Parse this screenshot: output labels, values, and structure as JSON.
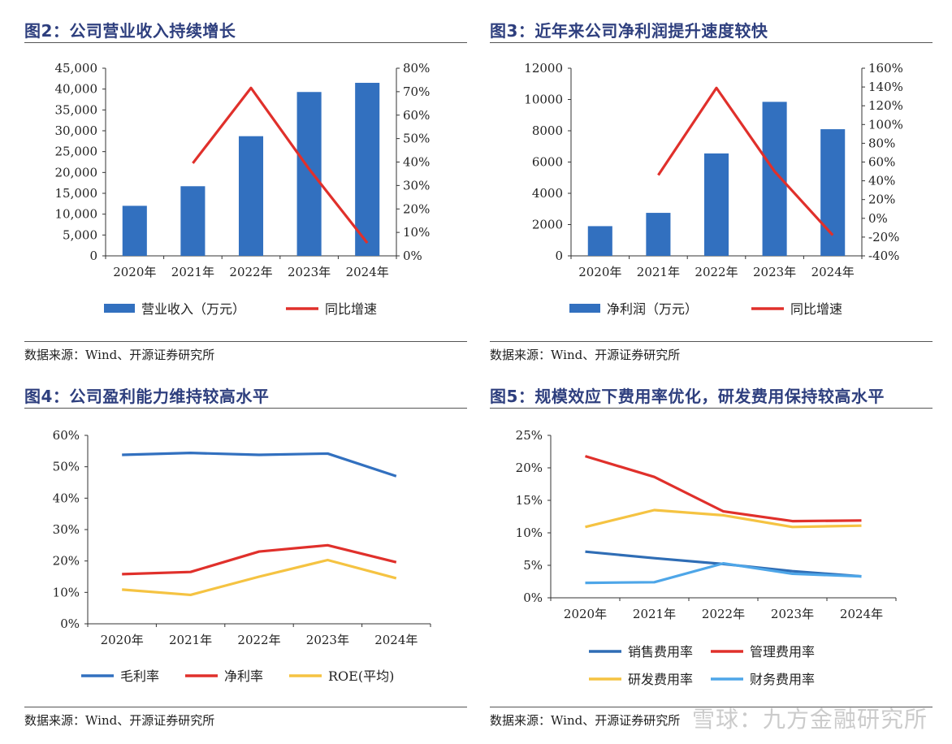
{
  "source_note": "数据来源：Wind、开源证券研究所",
  "watermark": "雪球：九方金融研究所",
  "charts": [
    {
      "title": "图2：公司营业收入持续增长",
      "legend": [
        "营业收入（万元）",
        "同比增速"
      ],
      "colors": {
        "bar": "#3270bf",
        "line": "#e0302b"
      }
    },
    {
      "title": "图3：近年来公司净利润提升速度较快",
      "legend": [
        "净利润（万元）",
        "同比增速"
      ],
      "colors": {
        "bar": "#3270bf",
        "line": "#e0302b"
      }
    },
    {
      "title": "图4：公司盈利能力维持较高水平",
      "legend": [
        "毛利率",
        "净利率",
        "ROE(平均)"
      ],
      "colors": [
        "#3270bf",
        "#e0302b",
        "#f5c342"
      ]
    },
    {
      "title": "图5：规模效应下费用率优化，研发费用保持较高水平",
      "legend": [
        "销售费用率",
        "管理费用率",
        "研发费用率",
        "财务费用率"
      ],
      "colors": [
        "#2f6db5",
        "#e0302b",
        "#f5c342",
        "#4ea6e8"
      ]
    }
  ],
  "chart_data": [
    {
      "type": "bar",
      "title": "图2：公司营业收入持续增长",
      "categories": [
        "2020年",
        "2021年",
        "2022年",
        "2023年",
        "2024年"
      ],
      "y_ticks": [
        "0",
        "5,000",
        "10,000",
        "15,000",
        "20,000",
        "25,000",
        "30,000",
        "35,000",
        "40,000",
        "45,000"
      ],
      "y2_ticks": [
        "0%",
        "10%",
        "20%",
        "30%",
        "40%",
        "50%",
        "60%",
        "70%",
        "80%"
      ],
      "ylim": [
        0,
        45000
      ],
      "y2lim": [
        0,
        80
      ],
      "series": [
        {
          "name": "营业收入（万元）",
          "type": "bar",
          "axis": "left",
          "values": [
            12000,
            16700,
            28700,
            39300,
            41500
          ]
        },
        {
          "name": "同比增速",
          "type": "line",
          "axis": "right",
          "values": [
            null,
            39.5,
            71.6,
            37.0,
            5.5
          ]
        }
      ]
    },
    {
      "type": "bar",
      "title": "图3：近年来公司净利润提升速度较快",
      "categories": [
        "2020年",
        "2021年",
        "2022年",
        "2023年",
        "2024年"
      ],
      "y_ticks": [
        "0",
        "2000",
        "4000",
        "6000",
        "8000",
        "10000",
        "12000"
      ],
      "y2_ticks": [
        "-40%",
        "-20%",
        "0%",
        "20%",
        "40%",
        "60%",
        "80%",
        "100%",
        "120%",
        "140%",
        "160%"
      ],
      "ylim": [
        0,
        12000
      ],
      "y2lim": [
        -40,
        160
      ],
      "series": [
        {
          "name": "净利润（万元）",
          "type": "bar",
          "axis": "left",
          "values": [
            1900,
            2750,
            6550,
            9850,
            8100
          ]
        },
        {
          "name": "同比增速",
          "type": "line",
          "axis": "right",
          "values": [
            null,
            46,
            139,
            50,
            -18
          ]
        }
      ]
    },
    {
      "type": "line",
      "title": "图4：公司盈利能力维持较高水平",
      "categories": [
        "2020年",
        "2021年",
        "2022年",
        "2023年",
        "2024年"
      ],
      "y_ticks": [
        "0%",
        "10%",
        "20%",
        "30%",
        "40%",
        "50%",
        "60%"
      ],
      "ylim": [
        0,
        60
      ],
      "series": [
        {
          "name": "毛利率",
          "values": [
            53.8,
            54.4,
            53.8,
            54.2,
            47.0
          ]
        },
        {
          "name": "净利率",
          "values": [
            15.8,
            16.5,
            23.0,
            25.0,
            19.6
          ]
        },
        {
          "name": "ROE(平均)",
          "values": [
            10.9,
            9.2,
            15.0,
            20.3,
            14.5
          ]
        }
      ]
    },
    {
      "type": "line",
      "title": "图5：规模效应下费用率优化，研发费用保持较高水平",
      "categories": [
        "2020年",
        "2021年",
        "2022年",
        "2023年",
        "2024年"
      ],
      "y_ticks": [
        "0%",
        "5%",
        "10%",
        "15%",
        "20%",
        "25%"
      ],
      "ylim": [
        0,
        25
      ],
      "series": [
        {
          "name": "销售费用率",
          "values": [
            7.1,
            6.1,
            5.2,
            4.1,
            3.3
          ]
        },
        {
          "name": "管理费用率",
          "values": [
            21.8,
            18.6,
            13.3,
            11.8,
            11.9
          ]
        },
        {
          "name": "研发费用率",
          "values": [
            10.9,
            13.5,
            12.7,
            10.9,
            11.1
          ]
        },
        {
          "name": "财务费用率",
          "values": [
            2.3,
            2.4,
            5.3,
            3.7,
            3.3
          ]
        }
      ]
    }
  ]
}
